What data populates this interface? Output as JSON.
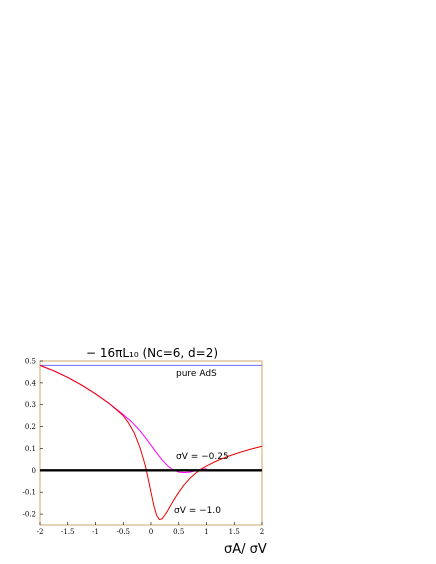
{
  "chart_data": {
    "type": "line",
    "title": "− 16πL₁₀ (Nᴄ=6, d=2)",
    "xlabel": "σA/ σV",
    "ylabel": "",
    "xlim": [
      -2,
      2
    ],
    "ylim": [
      -0.25,
      0.5
    ],
    "xticks": [
      "-2",
      "-1.5",
      "-1",
      "-0.5",
      "0",
      "0.5",
      "1",
      "1.5",
      "2"
    ],
    "yticks": [
      "0.5",
      "0.4",
      "0.3",
      "0.2",
      "0.1",
      "0",
      "-0.1",
      "-0.2"
    ],
    "grid": false,
    "colors": {
      "pure": "#6f6fff",
      "sigma025": "#ff00ff",
      "sigma1": "#ee0000",
      "zero": "#000000",
      "frame": "#c9a96a"
    },
    "series": [
      {
        "name": "pure AdS",
        "x": [
          -2,
          2
        ],
        "y": [
          0.48,
          0.48
        ]
      },
      {
        "name": "σV = −0.25",
        "x": [
          -2,
          -1.75,
          -1.5,
          -1.25,
          -1.0,
          -0.75,
          -0.5,
          -0.35,
          -0.2,
          -0.1,
          0.0,
          0.1,
          0.2,
          0.3,
          0.4,
          0.5,
          0.6,
          0.7,
          0.8,
          0.9,
          1.0
        ],
        "y": [
          0.48,
          0.455,
          0.425,
          0.39,
          0.35,
          0.305,
          0.255,
          0.222,
          0.182,
          0.15,
          0.115,
          0.08,
          0.048,
          0.02,
          0.002,
          -0.008,
          -0.01,
          -0.008,
          -0.002,
          0.003,
          0.008
        ]
      },
      {
        "name": "σV = −1.0",
        "x": [
          -2,
          -1.75,
          -1.5,
          -1.25,
          -1.0,
          -0.75,
          -0.5,
          -0.4,
          -0.3,
          -0.2,
          -0.1,
          0.0,
          0.05,
          0.1,
          0.15,
          0.2,
          0.3,
          0.4,
          0.5,
          0.6,
          0.7,
          0.8,
          0.9,
          1.0,
          1.2,
          1.4,
          1.6,
          1.8,
          2.0
        ],
        "y": [
          0.48,
          0.455,
          0.425,
          0.39,
          0.35,
          0.305,
          0.25,
          0.215,
          0.17,
          0.105,
          0.02,
          -0.1,
          -0.16,
          -0.205,
          -0.225,
          -0.222,
          -0.185,
          -0.14,
          -0.1,
          -0.065,
          -0.037,
          -0.014,
          0.005,
          0.02,
          0.045,
          0.065,
          0.082,
          0.097,
          0.11
        ]
      },
      {
        "name": "zero",
        "x": [
          -2,
          2
        ],
        "y": [
          0,
          0
        ]
      }
    ],
    "annotations": {
      "pure": "pure AdS",
      "sigma025": "σV = −0.25",
      "sigma1": "σV = −1.0"
    }
  }
}
